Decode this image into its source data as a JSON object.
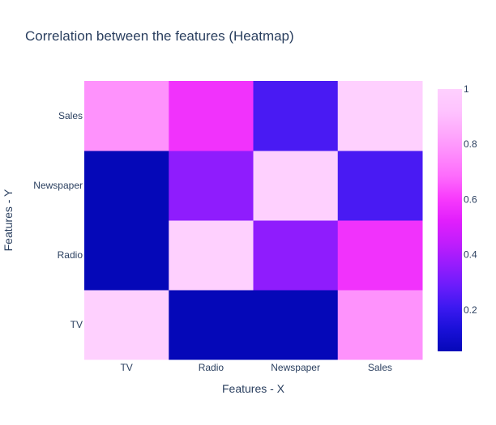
{
  "chart_data": {
    "type": "heatmap",
    "title": "Correlation between the features (Heatmap)",
    "xlabel": "Features - X",
    "ylabel": "Features - Y",
    "x_categories": [
      "TV",
      "Radio",
      "Newspaper",
      "Sales"
    ],
    "y_categories": [
      "TV",
      "Radio",
      "Newspaper",
      "Sales"
    ],
    "z": [
      [
        1.0,
        0.05,
        0.05,
        0.78
      ],
      [
        0.05,
        1.0,
        0.35,
        0.58
      ],
      [
        0.05,
        0.35,
        1.0,
        0.23
      ],
      [
        0.78,
        0.58,
        0.23,
        1.0
      ]
    ],
    "zlim": [
      0.05,
      1.0
    ],
    "colorbar": {
      "ticks": [
        0.2,
        0.4,
        0.6,
        0.8,
        1
      ],
      "tick_labels": [
        "0.2",
        "0.4",
        "0.6",
        "0.8",
        "1"
      ]
    },
    "colorscale": [
      [
        0.0,
        "#0508b8"
      ],
      [
        0.0833,
        "#1910d8"
      ],
      [
        0.1667,
        "#3c19f0"
      ],
      [
        0.25,
        "#6b1cfb"
      ],
      [
        0.3333,
        "#981cfd"
      ],
      [
        0.4167,
        "#c21dfc"
      ],
      [
        0.5,
        "#e21ffc"
      ],
      [
        0.5833,
        "#f83bfc"
      ],
      [
        0.6667,
        "#fd6bfc"
      ],
      [
        0.75,
        "#fe8bfc"
      ],
      [
        0.8333,
        "#fea9fc"
      ],
      [
        0.9167,
        "#fec3fe"
      ],
      [
        1.0,
        "#fed0fe"
      ]
    ],
    "grid": false,
    "colorbar_position": "right"
  }
}
